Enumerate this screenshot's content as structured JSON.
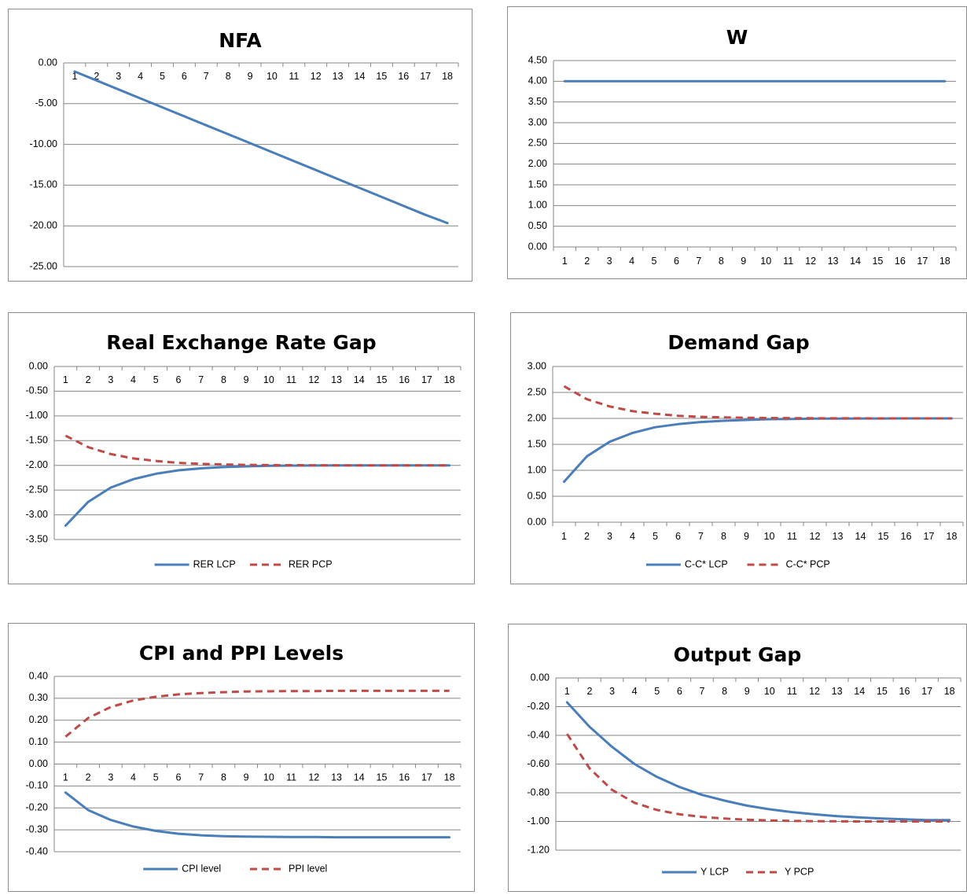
{
  "chart_data": [
    {
      "type": "line",
      "title": "NFA",
      "categories": [
        "1",
        "2",
        "3",
        "4",
        "5",
        "6",
        "7",
        "8",
        "9",
        "10",
        "11",
        "12",
        "13",
        "14",
        "15",
        "16",
        "17",
        "18"
      ],
      "ylim": [
        -25,
        0
      ],
      "yticks": [
        "0.00",
        "-5.00",
        "-10.00",
        "-15.00",
        "-20.00",
        "-25.00"
      ],
      "ytick_values": [
        0,
        -5,
        -10,
        -15,
        -20,
        -25
      ],
      "x_labels_position": "at zero line",
      "grid": true,
      "series": [
        {
          "color": "#4a7ebb",
          "dash": false,
          "values": [
            -1.05,
            -2.15,
            -3.25,
            -4.35,
            -5.45,
            -6.55,
            -7.65,
            -8.75,
            -9.85,
            -10.95,
            -12.05,
            -13.15,
            -14.25,
            -15.35,
            -16.45,
            -17.55,
            -18.65,
            -19.65
          ]
        }
      ]
    },
    {
      "type": "line",
      "title": "W",
      "categories": [
        "1",
        "2",
        "3",
        "4",
        "5",
        "6",
        "7",
        "8",
        "9",
        "10",
        "11",
        "12",
        "13",
        "14",
        "15",
        "16",
        "17",
        "18"
      ],
      "ylim": [
        0,
        4.5
      ],
      "yticks": [
        "4.50",
        "4.00",
        "3.50",
        "3.00",
        "2.50",
        "2.00",
        "1.50",
        "1.00",
        "0.50",
        "0.00"
      ],
      "ytick_values": [
        4.5,
        4,
        3.5,
        3,
        2.5,
        2,
        1.5,
        1,
        0.5,
        0
      ],
      "x_labels_position": "below axis",
      "grid": true,
      "series": [
        {
          "color": "#4a7ebb",
          "dash": false,
          "values": [
            4,
            4,
            4,
            4,
            4,
            4,
            4,
            4,
            4,
            4,
            4,
            4,
            4,
            4,
            4,
            4,
            4,
            4
          ]
        }
      ]
    },
    {
      "type": "line",
      "title": "Real Exchange Rate Gap",
      "categories": [
        "1",
        "2",
        "3",
        "4",
        "5",
        "6",
        "7",
        "8",
        "9",
        "10",
        "11",
        "12",
        "13",
        "14",
        "15",
        "16",
        "17",
        "18"
      ],
      "ylim": [
        -3.5,
        0
      ],
      "yticks": [
        "0.00",
        "-0.50",
        "-1.00",
        "-1.50",
        "-2.00",
        "-2.50",
        "-3.00",
        "-3.50"
      ],
      "ytick_values": [
        0,
        -0.5,
        -1,
        -1.5,
        -2,
        -2.5,
        -3,
        -3.5
      ],
      "x_labels_position": "at zero line",
      "grid": true,
      "legend": "bottom",
      "series": [
        {
          "name": "RER LCP",
          "color": "#4a7ebb",
          "dash": false,
          "values": [
            -3.22,
            -2.74,
            -2.45,
            -2.28,
            -2.17,
            -2.1,
            -2.06,
            -2.035,
            -2.02,
            -2.01,
            -2.005,
            -2.003,
            -2.002,
            -2.001,
            -2.0,
            -2.0,
            -2.0,
            -2.0
          ]
        },
        {
          "name": "RER PCP",
          "color": "#be4b48",
          "dash": true,
          "values": [
            -1.4,
            -1.63,
            -1.77,
            -1.86,
            -1.91,
            -1.95,
            -1.97,
            -1.98,
            -1.99,
            -1.995,
            -1.997,
            -1.998,
            -1.999,
            -2.0,
            -2.0,
            -2.0,
            -2.0,
            -2.0
          ]
        }
      ]
    },
    {
      "type": "line",
      "title": "Demand Gap",
      "categories": [
        "1",
        "2",
        "3",
        "4",
        "5",
        "6",
        "7",
        "8",
        "9",
        "10",
        "11",
        "12",
        "13",
        "14",
        "15",
        "16",
        "17",
        "18"
      ],
      "ylim": [
        0,
        3
      ],
      "yticks": [
        "3.00",
        "2.50",
        "2.00",
        "1.50",
        "1.00",
        "0.50",
        "0.00"
      ],
      "ytick_values": [
        3,
        2.5,
        2,
        1.5,
        1,
        0.5,
        0
      ],
      "x_labels_position": "below axis",
      "grid": true,
      "legend": "bottom",
      "series": [
        {
          "name": "C-C* LCP",
          "color": "#4a7ebb",
          "dash": false,
          "values": [
            0.78,
            1.27,
            1.55,
            1.72,
            1.83,
            1.89,
            1.93,
            1.955,
            1.97,
            1.985,
            1.99,
            1.995,
            1.997,
            1.998,
            1.999,
            2.0,
            2.0,
            2.0
          ]
        },
        {
          "name": "C-C* PCP",
          "color": "#be4b48",
          "dash": true,
          "values": [
            2.62,
            2.37,
            2.23,
            2.14,
            2.09,
            2.05,
            2.03,
            2.02,
            2.012,
            2.008,
            2.005,
            2.003,
            2.002,
            2.001,
            2.0,
            2.0,
            2.0,
            2.0
          ]
        }
      ]
    },
    {
      "type": "line",
      "title": "CPI and PPI Levels",
      "categories": [
        "1",
        "2",
        "3",
        "4",
        "5",
        "6",
        "7",
        "8",
        "9",
        "10",
        "11",
        "12",
        "13",
        "14",
        "15",
        "16",
        "17",
        "18"
      ],
      "ylim": [
        -0.4,
        0.4
      ],
      "yticks": [
        "0.40",
        "0.30",
        "0.20",
        "0.10",
        "0.00",
        "-0.10",
        "-0.20",
        "-0.30",
        "-0.40"
      ],
      "ytick_values": [
        0.4,
        0.3,
        0.2,
        0.1,
        0,
        -0.1,
        -0.2,
        -0.3,
        -0.4
      ],
      "x_labels_position": "at zero line",
      "grid": true,
      "legend": "bottom",
      "series": [
        {
          "name": "CPI level",
          "color": "#4a7ebb",
          "dash": false,
          "values": [
            -0.13,
            -0.21,
            -0.255,
            -0.285,
            -0.305,
            -0.318,
            -0.325,
            -0.329,
            -0.331,
            -0.332,
            -0.333,
            -0.333,
            -0.334,
            -0.334,
            -0.334,
            -0.334,
            -0.334,
            -0.334
          ]
        },
        {
          "name": "PPI level",
          "color": "#be4b48",
          "dash": true,
          "values": [
            0.125,
            0.21,
            0.26,
            0.29,
            0.307,
            0.318,
            0.324,
            0.328,
            0.331,
            0.332,
            0.333,
            0.333,
            0.334,
            0.334,
            0.334,
            0.334,
            0.334,
            0.334
          ]
        }
      ]
    },
    {
      "type": "line",
      "title": "Output Gap",
      "categories": [
        "1",
        "2",
        "3",
        "4",
        "5",
        "6",
        "7",
        "8",
        "9",
        "10",
        "11",
        "12",
        "13",
        "14",
        "15",
        "16",
        "17",
        "18"
      ],
      "ylim": [
        -1.2,
        0
      ],
      "yticks": [
        "0.00",
        "-0.20",
        "-0.40",
        "-0.60",
        "-0.80",
        "-1.00",
        "-1.20"
      ],
      "ytick_values": [
        0,
        -0.2,
        -0.4,
        -0.6,
        -0.8,
        -1,
        -1.2
      ],
      "x_labels_position": "at zero line",
      "grid": true,
      "legend": "bottom",
      "series": [
        {
          "name": "Y LCP",
          "color": "#4a7ebb",
          "dash": false,
          "values": [
            -0.17,
            -0.34,
            -0.48,
            -0.6,
            -0.69,
            -0.76,
            -0.815,
            -0.855,
            -0.89,
            -0.915,
            -0.935,
            -0.95,
            -0.963,
            -0.972,
            -0.979,
            -0.985,
            -0.99,
            -0.99
          ]
        },
        {
          "name": "Y PCP",
          "color": "#be4b48",
          "dash": true,
          "values": [
            -0.39,
            -0.63,
            -0.78,
            -0.87,
            -0.92,
            -0.95,
            -0.968,
            -0.98,
            -0.988,
            -0.993,
            -0.996,
            -0.998,
            -0.999,
            -1.0,
            -1.0,
            -1.0,
            -1.0,
            -1.0
          ]
        }
      ]
    }
  ]
}
